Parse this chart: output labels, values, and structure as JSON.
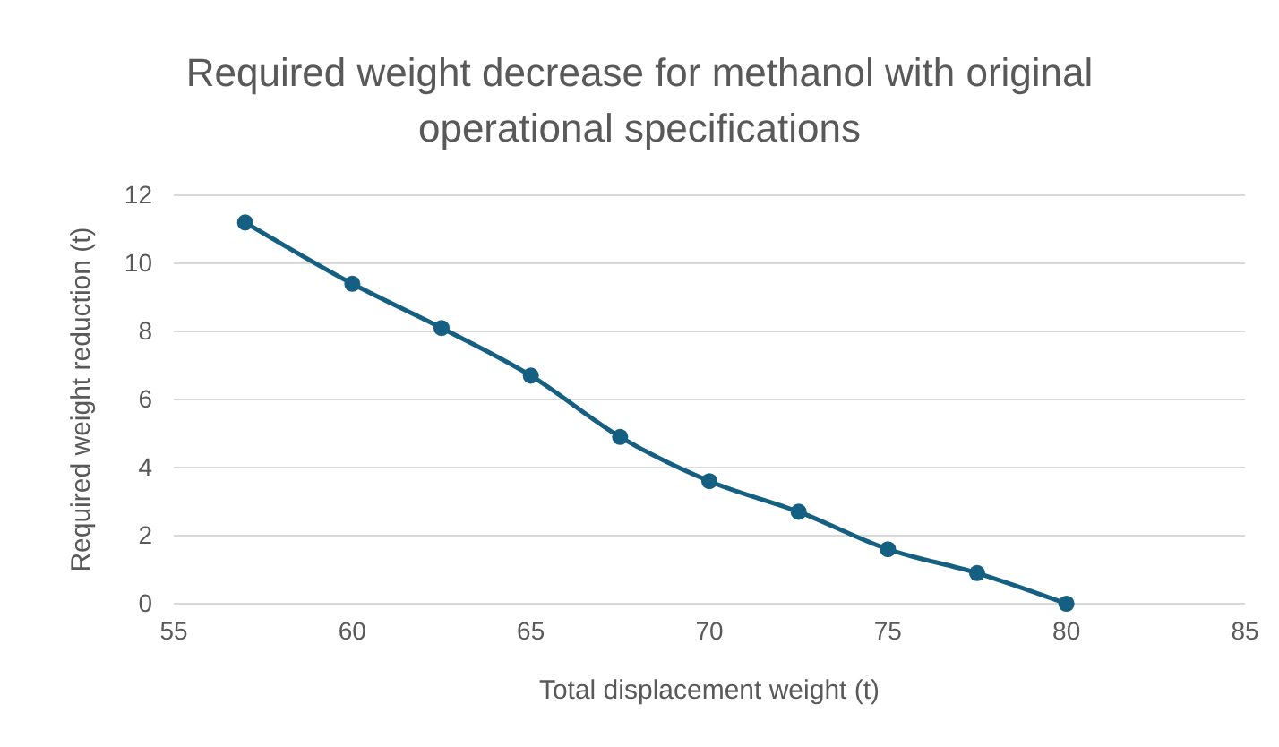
{
  "chart_data": {
    "type": "line",
    "title": "Required weight decrease for methanol with original operational specifications",
    "xlabel": "Total displacement weight (t)",
    "ylabel": "Required weight reduction (t)",
    "x": [
      57,
      60,
      62.5,
      65,
      67.5,
      70,
      72.5,
      75,
      77.5,
      80
    ],
    "series": [
      {
        "color": "#156082",
        "values": [
          11.2,
          9.4,
          8.1,
          6.7,
          4.9,
          3.6,
          2.7,
          1.6,
          0.9,
          0
        ]
      }
    ],
    "xlim": [
      55,
      85
    ],
    "xticks": [
      55,
      60,
      65,
      70,
      75,
      80,
      85
    ],
    "ylim": [
      0,
      12
    ],
    "yticks": [
      0,
      2,
      4,
      6,
      8,
      10,
      12
    ],
    "grid": "y",
    "marker": "circle",
    "line_style": "solid"
  }
}
